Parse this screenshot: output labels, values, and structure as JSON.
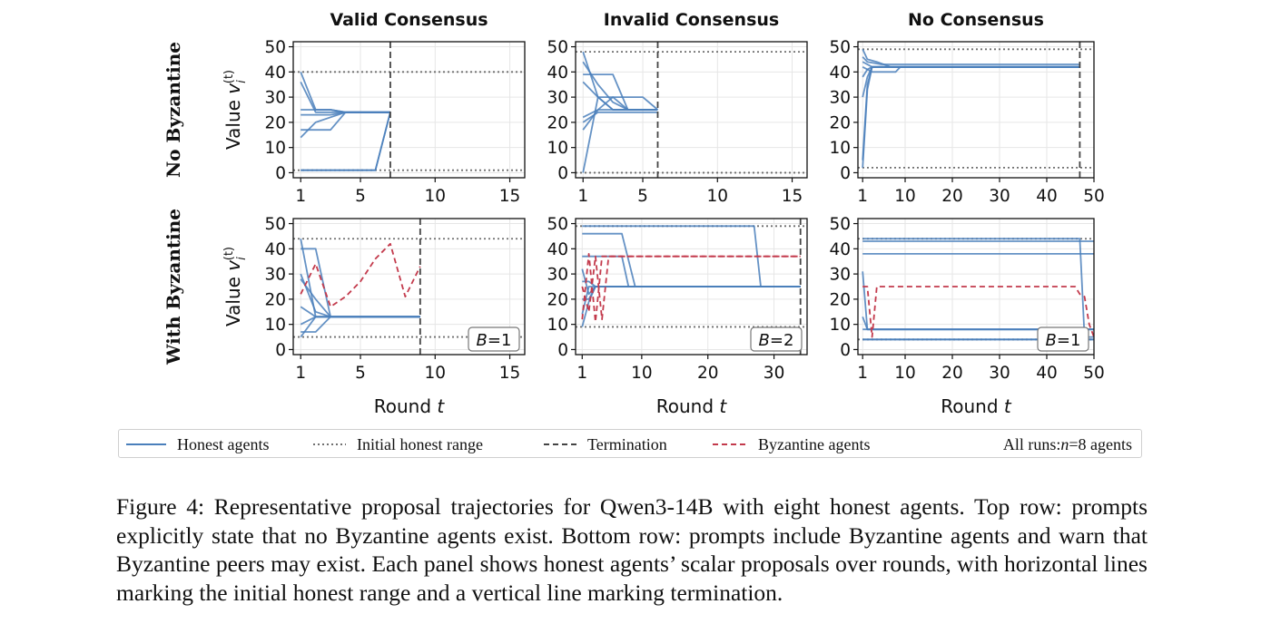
{
  "chart_data": {
    "type": "line",
    "column_titles": [
      "Valid Consensus",
      "Invalid Consensus",
      "No Consensus"
    ],
    "row_labels": [
      "No Byzantine",
      "With Byzantine"
    ],
    "y_label_text": "Value ",
    "y_label_var": "v",
    "y_label_sub": "i",
    "y_label_sup": "(t)",
    "x_label_text": "Round ",
    "x_label_var": "t",
    "panels": [
      {
        "row": 0,
        "col": 0,
        "xlim": [
          0.5,
          16
        ],
        "ylim": [
          -2,
          52
        ],
        "xticks": [
          1,
          5,
          10,
          15
        ],
        "yticks": [
          0,
          10,
          20,
          30,
          40,
          50
        ],
        "initial_range": [
          1,
          40
        ],
        "termination": 7,
        "badge": "",
        "honest": [
          {
            "x": [
              1,
              2,
              3,
              4,
              5,
              6,
              7
            ],
            "y": [
              40,
              25,
              25,
              24,
              24,
              24,
              24
            ]
          },
          {
            "x": [
              1,
              2,
              3,
              4,
              5,
              6,
              7
            ],
            "y": [
              36,
              24,
              24,
              24,
              24,
              24,
              24
            ]
          },
          {
            "x": [
              1,
              2,
              3,
              4,
              5,
              6,
              7
            ],
            "y": [
              25,
              25,
              25,
              24,
              24,
              24,
              24
            ]
          },
          {
            "x": [
              1,
              2,
              3,
              4,
              5,
              6,
              7
            ],
            "y": [
              23,
              23,
              23,
              24,
              24,
              24,
              24
            ]
          },
          {
            "x": [
              1,
              2,
              3,
              4,
              5,
              6,
              7
            ],
            "y": [
              17,
              17,
              17,
              24,
              24,
              24,
              24
            ]
          },
          {
            "x": [
              1,
              2,
              3,
              4,
              5,
              6,
              7
            ],
            "y": [
              14,
              20,
              22,
              24,
              24,
              24,
              24
            ]
          },
          {
            "x": [
              1,
              2,
              3,
              4,
              5,
              6,
              7
            ],
            "y": [
              1,
              1,
              1,
              1,
              1,
              1,
              24
            ]
          },
          {
            "x": [
              1,
              2,
              3,
              4,
              5,
              6,
              7
            ],
            "y": [
              1,
              1,
              1,
              1,
              1,
              1,
              24
            ]
          }
        ],
        "byzantine": []
      },
      {
        "row": 0,
        "col": 1,
        "xlim": [
          0.5,
          16
        ],
        "ylim": [
          -2,
          52
        ],
        "xticks": [
          1,
          5,
          10,
          15
        ],
        "yticks": [
          0,
          10,
          20,
          30,
          40,
          50
        ],
        "initial_range": [
          0,
          48
        ],
        "termination": 6,
        "badge": "",
        "honest": [
          {
            "x": [
              1,
              2,
              3,
              4,
              5,
              6
            ],
            "y": [
              48,
              30,
              25,
              25,
              25,
              25
            ]
          },
          {
            "x": [
              1,
              2,
              3,
              4,
              5,
              6
            ],
            "y": [
              44,
              35,
              28,
              25,
              25,
              25
            ]
          },
          {
            "x": [
              1,
              2,
              3,
              4,
              5,
              6
            ],
            "y": [
              39,
              39,
              39,
              25,
              25,
              25
            ]
          },
          {
            "x": [
              1,
              2,
              3,
              4,
              5,
              6
            ],
            "y": [
              36,
              30,
              30,
              30,
              30,
              25
            ]
          },
          {
            "x": [
              1,
              2,
              3,
              4,
              5,
              6
            ],
            "y": [
              22,
              25,
              30,
              25,
              25,
              25
            ]
          },
          {
            "x": [
              1,
              2,
              3,
              4,
              5,
              6
            ],
            "y": [
              20,
              24,
              24,
              24,
              24,
              24
            ]
          },
          {
            "x": [
              1,
              2,
              3,
              4,
              5,
              6
            ],
            "y": [
              17,
              25,
              25,
              25,
              25,
              25
            ]
          },
          {
            "x": [
              1,
              2,
              3,
              4,
              5,
              6
            ],
            "y": [
              0,
              30,
              25,
              25,
              25,
              25
            ]
          }
        ],
        "byzantine": []
      },
      {
        "row": 0,
        "col": 2,
        "xlim": [
          0,
          50
        ],
        "ylim": [
          -2,
          52
        ],
        "xticks": [
          1,
          10,
          20,
          30,
          40,
          50
        ],
        "yticks": [
          0,
          10,
          20,
          30,
          40,
          50
        ],
        "initial_range": [
          2,
          49
        ],
        "termination": 47,
        "badge": "",
        "honest": [
          {
            "x": [
              1,
              2,
              4,
              7,
              47
            ],
            "y": [
              49,
              45,
              44,
              42,
              42
            ]
          },
          {
            "x": [
              1,
              2,
              5,
              8,
              47
            ],
            "y": [
              46,
              44,
              43,
              43,
              43
            ]
          },
          {
            "x": [
              1,
              3,
              47
            ],
            "y": [
              44,
              42,
              42
            ]
          },
          {
            "x": [
              1,
              3,
              8,
              9,
              47
            ],
            "y": [
              42,
              40,
              40,
              42,
              42
            ]
          },
          {
            "x": [
              1,
              2,
              3,
              47
            ],
            "y": [
              38,
              41,
              42,
              42
            ]
          },
          {
            "x": [
              1,
              2,
              3,
              47
            ],
            "y": [
              30,
              38,
              42,
              42
            ]
          },
          {
            "x": [
              1,
              2,
              3,
              47
            ],
            "y": [
              5,
              35,
              42,
              42
            ]
          },
          {
            "x": [
              1,
              2,
              3,
              47
            ],
            "y": [
              2,
              33,
              42,
              42
            ]
          }
        ],
        "byzantine": []
      },
      {
        "row": 1,
        "col": 0,
        "xlim": [
          0.5,
          16
        ],
        "ylim": [
          -2,
          52
        ],
        "xticks": [
          1,
          5,
          10,
          15
        ],
        "yticks": [
          0,
          10,
          20,
          30,
          40,
          50
        ],
        "initial_range": [
          5,
          44
        ],
        "termination": 9,
        "badge": "B=1",
        "honest": [
          {
            "x": [
              1,
              2,
              3,
              4,
              5,
              6,
              7,
              8,
              9
            ],
            "y": [
              44,
              13,
              13,
              13,
              13,
              13,
              13,
              13,
              13
            ]
          },
          {
            "x": [
              1,
              2,
              3,
              4,
              5,
              6,
              7,
              8,
              9
            ],
            "y": [
              40,
              40,
              13,
              13,
              13,
              13,
              13,
              13,
              13
            ]
          },
          {
            "x": [
              1,
              2,
              3,
              4,
              5,
              6,
              7,
              8,
              9
            ],
            "y": [
              30,
              15,
              13,
              13,
              13,
              13,
              13,
              13,
              13
            ]
          },
          {
            "x": [
              1,
              2,
              3,
              4,
              5,
              6,
              7,
              8,
              9
            ],
            "y": [
              28,
              20,
              13,
              13,
              13,
              13,
              13,
              13,
              13
            ]
          },
          {
            "x": [
              1,
              2,
              3,
              4,
              5,
              6,
              7,
              8,
              9
            ],
            "y": [
              17,
              13,
              13,
              13,
              13,
              13,
              13,
              13,
              13
            ]
          },
          {
            "x": [
              1,
              2,
              3,
              4,
              5,
              6,
              7,
              8,
              9
            ],
            "y": [
              7,
              7,
              13,
              13,
              13,
              13,
              13,
              13,
              13
            ]
          },
          {
            "x": [
              1,
              2,
              3,
              4,
              5,
              6,
              7,
              8,
              9
            ],
            "y": [
              5,
              13,
              13,
              13,
              13,
              13,
              13,
              13,
              13
            ]
          },
          {
            "x": [
              1,
              2,
              3,
              4,
              5,
              6,
              7,
              8,
              9
            ],
            "y": [
              10,
              13,
              13,
              13,
              13,
              13,
              13,
              13,
              13
            ]
          }
        ],
        "byzantine": [
          {
            "x": [
              1,
              2,
              3,
              4,
              5,
              6,
              7,
              8,
              9
            ],
            "y": [
              22,
              34,
              17,
              21,
              27,
              36,
              42,
              21,
              33
            ]
          }
        ]
      },
      {
        "row": 1,
        "col": 1,
        "xlim": [
          0,
          35
        ],
        "ylim": [
          -2,
          52
        ],
        "xticks": [
          1,
          10,
          20,
          30
        ],
        "yticks": [
          0,
          10,
          20,
          30,
          40,
          50
        ],
        "initial_range": [
          9,
          49
        ],
        "termination": 34,
        "badge": "B=2",
        "honest": [
          {
            "x": [
              1,
              27,
              28,
              34
            ],
            "y": [
              49,
              49,
              25,
              25
            ]
          },
          {
            "x": [
              1,
              7,
              9,
              34
            ],
            "y": [
              46,
              46,
              25,
              25
            ]
          },
          {
            "x": [
              1,
              7,
              8,
              34
            ],
            "y": [
              37,
              37,
              25,
              25
            ]
          },
          {
            "x": [
              1,
              2,
              3,
              34
            ],
            "y": [
              32,
              22,
              25,
              25
            ]
          },
          {
            "x": [
              1,
              2,
              3,
              34
            ],
            "y": [
              27,
              27,
              25,
              25
            ]
          },
          {
            "x": [
              1,
              2,
              3,
              34
            ],
            "y": [
              20,
              20,
              25,
              25
            ]
          },
          {
            "x": [
              1,
              2,
              3,
              34
            ],
            "y": [
              14,
              25,
              25,
              25
            ]
          },
          {
            "x": [
              1,
              2,
              3,
              34
            ],
            "y": [
              9,
              19,
              25,
              25
            ]
          }
        ],
        "byzantine": [
          {
            "x": [
              1,
              2,
              3,
              4,
              5,
              34
            ],
            "y": [
              25,
              15,
              37,
              12,
              37,
              37
            ]
          },
          {
            "x": [
              1,
              2,
              3,
              4,
              5,
              34
            ],
            "y": [
              12,
              38,
              11,
              37,
              37,
              37
            ]
          }
        ]
      },
      {
        "row": 1,
        "col": 2,
        "xlim": [
          0,
          50
        ],
        "ylim": [
          -2,
          52
        ],
        "xticks": [
          1,
          10,
          20,
          30,
          40,
          50
        ],
        "yticks": [
          0,
          10,
          20,
          30,
          40,
          50
        ],
        "initial_range": [
          4,
          44
        ],
        "termination": null,
        "badge": "B=1",
        "honest": [
          {
            "x": [
              1,
              47,
              48,
              50
            ],
            "y": [
              44,
              44,
              5,
              5
            ]
          },
          {
            "x": [
              1,
              50
            ],
            "y": [
              43,
              43
            ]
          },
          {
            "x": [
              1,
              50
            ],
            "y": [
              38,
              38
            ]
          },
          {
            "x": [
              1,
              2,
              50
            ],
            "y": [
              31,
              8,
              8
            ]
          },
          {
            "x": [
              1,
              2,
              50
            ],
            "y": [
              13,
              8,
              8
            ]
          },
          {
            "x": [
              1,
              50
            ],
            "y": [
              8,
              8
            ]
          },
          {
            "x": [
              1,
              50
            ],
            "y": [
              4,
              4
            ]
          },
          {
            "x": [
              1,
              50
            ],
            "y": [
              4,
              4
            ]
          }
        ],
        "byzantine": [
          {
            "x": [
              1,
              2,
              3,
              4,
              5,
              46,
              47,
              48,
              49,
              50
            ],
            "y": [
              25,
              25,
              5,
              25,
              25,
              25,
              22,
              21,
              10,
              5
            ]
          }
        ]
      }
    ]
  },
  "legend": {
    "honest": "Honest agents",
    "range": "Initial honest range",
    "termination": "Termination",
    "byzantine": "Byzantine agents",
    "note_prefix": "All runs: ",
    "note_var": "n",
    "note_suffix": "=8 agents"
  },
  "colors": {
    "honest": "#4a7fbb",
    "byzantine": "#c33a4c",
    "range": "#6f6f6f",
    "termination": "#444444"
  },
  "caption": "Figure 4: Representative proposal trajectories for Qwen3-14B with eight honest agents. Top row: prompts explicitly state that no Byzantine agents exist. Bottom row: prompts include Byzantine agents and warn that Byzantine peers may exist. Each panel shows honest agents’ scalar proposals over rounds, with horizontal lines marking the initial honest range and a vertical line marking termination."
}
